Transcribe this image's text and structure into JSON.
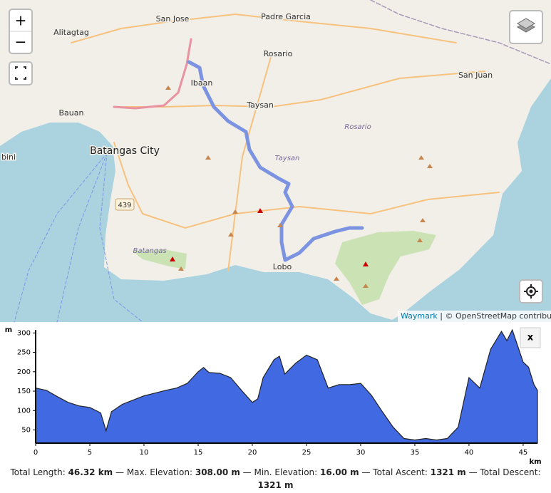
{
  "map": {
    "places": [
      "San Jose",
      "Padre Garcia",
      "Alitagtag",
      "Rosario",
      "San Juan",
      "Ibaan",
      "Bauan",
      "Taysan",
      "Rosario",
      "Batangas City",
      "Taysan",
      "bini",
      "Batangas",
      "Lobo"
    ],
    "road_shield": "439",
    "zoom_in": "+",
    "zoom_out": "−",
    "attribution_link": "Waymark",
    "attribution_text": " | © OpenStreetMap contributors"
  },
  "profile_close": "x",
  "chart_data": {
    "type": "area",
    "color": "#4169e1",
    "x": [
      0,
      1,
      2,
      3,
      4,
      5,
      6,
      6.5,
      7,
      8,
      9,
      10,
      11,
      12,
      13,
      14,
      15,
      15.5,
      16,
      17,
      18,
      19,
      20,
      20.5,
      21,
      22,
      22.5,
      23,
      24,
      25,
      26,
      27,
      28,
      29,
      30,
      31,
      32,
      33,
      34,
      35,
      36,
      37,
      38,
      39,
      40,
      41,
      42,
      43,
      43.5,
      44,
      45,
      45.5,
      46,
      46.32
    ],
    "values": [
      158,
      152,
      136,
      121,
      112,
      108,
      94,
      48,
      97,
      116,
      127,
      138,
      145,
      152,
      158,
      170,
      200,
      211,
      198,
      196,
      185,
      152,
      121,
      130,
      185,
      231,
      240,
      194,
      222,
      243,
      231,
      158,
      167,
      167,
      170,
      139,
      97,
      57,
      28,
      24,
      28,
      24,
      28,
      57,
      185,
      158,
      258,
      304,
      280,
      308,
      225,
      212,
      167,
      152
    ],
    "xlim": [
      0,
      46.32
    ],
    "ylim": [
      16,
      308
    ],
    "xticks": [
      0,
      5,
      10,
      15,
      20,
      25,
      30,
      35,
      40,
      45
    ],
    "yticks": [
      50,
      100,
      150,
      200,
      250,
      300
    ],
    "xlabel": "km",
    "ylabel": "m",
    "summary": [
      {
        "label": "Total Length: ",
        "value": "46.32 km"
      },
      {
        "label": " — Max. Elevation: ",
        "value": "308.00 m"
      },
      {
        "label": " — Min. Elevation: ",
        "value": "16.00 m"
      },
      {
        "label": " — Total Ascent: ",
        "value": "1321 m"
      },
      {
        "label": " — Total Descent: ",
        "value": "1321 m"
      }
    ]
  }
}
